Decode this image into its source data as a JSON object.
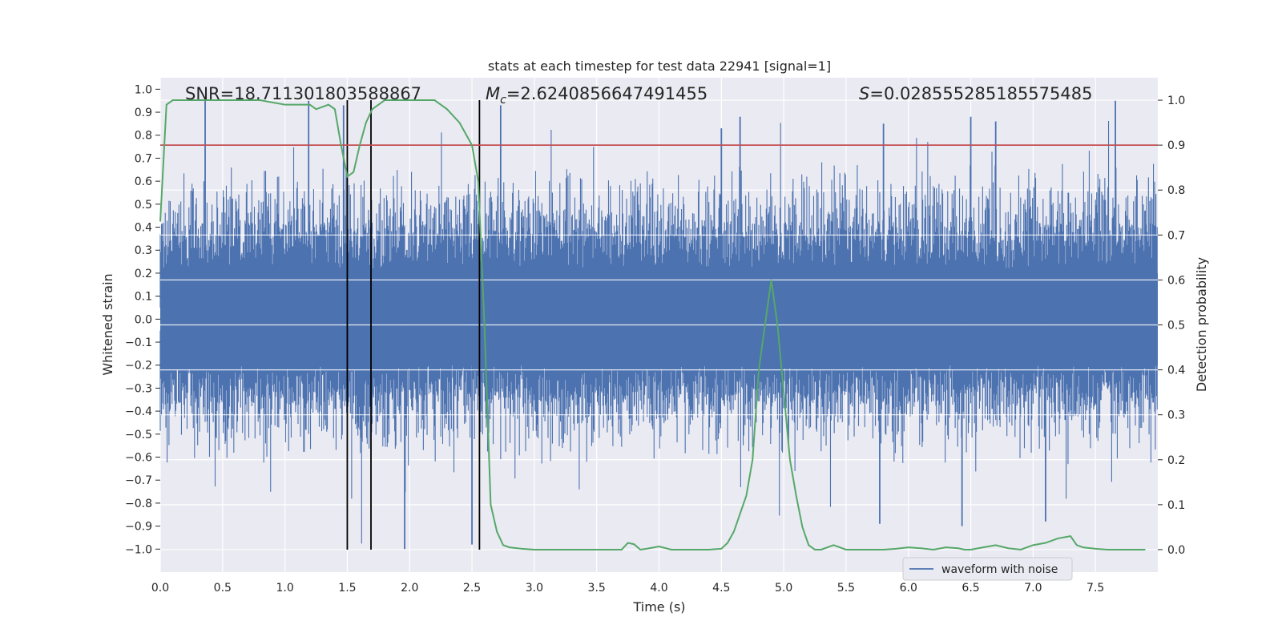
{
  "chart_data": {
    "type": "line",
    "title": "stats at each timestep for test data 22941 [signal=1]",
    "xlabel": "Time (s)",
    "ylabel_left": "Whitened strain",
    "ylabel_right": "Detection probability",
    "xlim": [
      0.0,
      8.0
    ],
    "ylim_left": [
      -1.1,
      1.05
    ],
    "ylim_right": [
      -0.05,
      1.05
    ],
    "x_ticks": [
      0.0,
      0.5,
      1.0,
      1.5,
      2.0,
      2.5,
      3.0,
      3.5,
      4.0,
      4.5,
      5.0,
      5.5,
      6.0,
      6.5,
      7.0,
      7.5
    ],
    "x_tick_labels": [
      "0.0",
      "0.5",
      "1.0",
      "1.5",
      "2.0",
      "2.5",
      "3.0",
      "3.5",
      "4.0",
      "4.5",
      "5.0",
      "5.5",
      "6.0",
      "6.5",
      "7.0",
      "7.5"
    ],
    "y_left_ticks": [
      1.0,
      0.9,
      0.8,
      0.7,
      0.6,
      0.5,
      0.4,
      0.3,
      0.2,
      0.1,
      0.0,
      -0.1,
      -0.2,
      -0.3,
      -0.4,
      -0.5,
      -0.6,
      -0.7,
      -0.8,
      -0.9,
      -1.0
    ],
    "y_left_tick_labels": [
      "1.0",
      "0.9",
      "0.8",
      "0.7",
      "0.6",
      "0.5",
      "0.4",
      "0.3",
      "0.2",
      "0.1",
      "0.0",
      "−0.1",
      "−0.2",
      "−0.3",
      "−0.4",
      "−0.5",
      "−0.6",
      "−0.7",
      "−0.8",
      "−0.9",
      "−1.0"
    ],
    "y_right_ticks": [
      1.0,
      0.9,
      0.8,
      0.7,
      0.6,
      0.5,
      0.4,
      0.3,
      0.2,
      0.1,
      0.0
    ],
    "y_right_tick_labels": [
      "1.0",
      "0.9",
      "0.8",
      "0.7",
      "0.6",
      "0.5",
      "0.4",
      "0.3",
      "0.2",
      "0.1",
      "0.0"
    ],
    "annotations": {
      "snr": "SNR=18.711301803588867",
      "mc_symbol": "M",
      "mc_sub": "c",
      "mc_value": "=2.6240856647491455",
      "s_symbol": "S",
      "s_value": "=0.028555285185575485"
    },
    "legend": {
      "label": "waveform with noise",
      "placement": "lower-right"
    },
    "threshold_probability": 0.9,
    "event_markers_s": [
      1.5,
      1.69,
      2.56
    ],
    "waveform": {
      "name": "waveform with noise",
      "duration_s": 8.0,
      "typical_peak_positive": 0.55,
      "typical_peak_negative": -0.45,
      "max_value": 0.95,
      "min_value": -1.0,
      "notable_peaks": [
        {
          "t": 0.36,
          "v": 0.95
        },
        {
          "t": 1.19,
          "v": 0.95
        },
        {
          "t": 1.47,
          "v": 0.93
        },
        {
          "t": 2.73,
          "v": 0.93
        },
        {
          "t": 4.5,
          "v": 0.83
        },
        {
          "t": 4.65,
          "v": 0.88
        },
        {
          "t": 5.8,
          "v": 0.85
        },
        {
          "t": 6.5,
          "v": 0.88
        },
        {
          "t": 6.7,
          "v": 0.86
        },
        {
          "t": 7.66,
          "v": 0.95
        },
        {
          "t": 1.96,
          "v": -1.0
        },
        {
          "t": 2.5,
          "v": -0.98
        },
        {
          "t": 6.43,
          "v": -0.9
        },
        {
          "t": 7.1,
          "v": -0.88
        },
        {
          "t": 5.77,
          "v": -0.89
        }
      ]
    },
    "probability": {
      "t": [
        0.0,
        0.05,
        0.1,
        0.2,
        0.4,
        0.6,
        0.8,
        1.0,
        1.1,
        1.2,
        1.25,
        1.3,
        1.35,
        1.4,
        1.45,
        1.5,
        1.55,
        1.6,
        1.65,
        1.7,
        1.75,
        1.8,
        1.85,
        1.9,
        1.95,
        2.0,
        2.1,
        2.2,
        2.3,
        2.4,
        2.5,
        2.55,
        2.6,
        2.65,
        2.7,
        2.75,
        2.8,
        2.9,
        3.0,
        3.2,
        3.4,
        3.6,
        3.65,
        3.7,
        3.75,
        3.8,
        3.85,
        3.9,
        4.0,
        4.1,
        4.2,
        4.4,
        4.5,
        4.55,
        4.6,
        4.65,
        4.7,
        4.75,
        4.8,
        4.85,
        4.9,
        4.95,
        5.0,
        5.05,
        5.1,
        5.15,
        5.2,
        5.25,
        5.3,
        5.4,
        5.5,
        5.6,
        5.7,
        5.8,
        5.9,
        6.0,
        6.1,
        6.2,
        6.3,
        6.4,
        6.45,
        6.5,
        6.6,
        6.7,
        6.8,
        6.9,
        7.0,
        7.1,
        7.2,
        7.3,
        7.35,
        7.4,
        7.5,
        7.6,
        7.7,
        7.8,
        7.9
      ],
      "v": [
        0.73,
        0.99,
        1.0,
        1.0,
        1.0,
        1.0,
        1.0,
        0.99,
        0.99,
        0.99,
        0.98,
        0.985,
        0.99,
        0.98,
        0.9,
        0.83,
        0.84,
        0.9,
        0.95,
        0.98,
        0.99,
        1.0,
        1.0,
        1.0,
        1.0,
        1.0,
        1.0,
        1.0,
        0.98,
        0.95,
        0.9,
        0.82,
        0.5,
        0.1,
        0.04,
        0.01,
        0.005,
        0.002,
        0.0,
        0.0,
        0.0,
        0.0,
        0.0,
        0.0,
        0.015,
        0.012,
        0.0,
        0.002,
        0.007,
        0.0,
        0.0,
        0.0,
        0.002,
        0.015,
        0.04,
        0.08,
        0.12,
        0.2,
        0.4,
        0.5,
        0.6,
        0.5,
        0.35,
        0.2,
        0.12,
        0.05,
        0.01,
        0.0,
        0.0,
        0.01,
        0.0,
        0.0,
        0.0,
        0.0,
        0.002,
        0.005,
        0.003,
        0.0,
        0.005,
        0.003,
        0.0,
        0.0,
        0.005,
        0.01,
        0.003,
        0.0,
        0.01,
        0.015,
        0.025,
        0.03,
        0.01,
        0.005,
        0.002,
        0.0,
        0.0,
        0.0,
        0.0
      ]
    },
    "colors": {
      "waveform": "#4c72b0",
      "probability": "#55a868",
      "threshold": "#c44e52",
      "markers": "#000000",
      "plot_bg": "#eaeaf2",
      "grid": "#ffffff",
      "text": "#262626"
    }
  }
}
